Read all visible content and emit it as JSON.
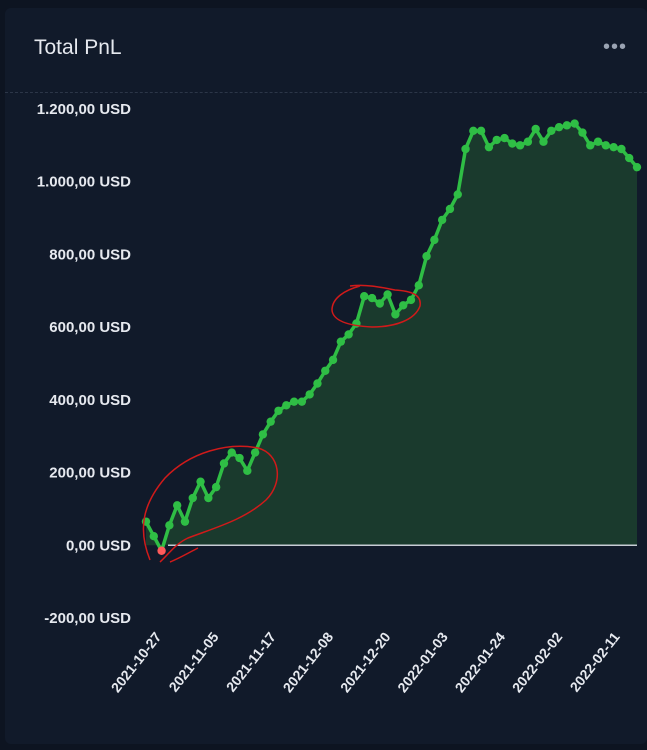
{
  "card": {
    "title": "Total PnL",
    "menu_icon": "more-horizontal-icon"
  },
  "colors": {
    "background": "#111a2a",
    "line": "#2fbe45",
    "area": "#1a3a2d",
    "negative_point": "#ff5b5b",
    "zero_line": "#c7ccd4",
    "annotation": "#d11a1a"
  },
  "chart_data": {
    "type": "area",
    "title": "Total PnL",
    "xlabel": "",
    "ylabel": "",
    "ylim": [
      -200,
      1200
    ],
    "y_ticks": [
      -200,
      0,
      200,
      400,
      600,
      800,
      1000,
      1200
    ],
    "y_tick_labels": [
      "-200,00 USD",
      "0,00 USD",
      "200,00 USD",
      "400,00 USD",
      "600,00 USD",
      "800,00 USD",
      "1.000,00 USD",
      "1.200,00 USD"
    ],
    "x_tick_labels": [
      "2021-10-27",
      "2021-11-05",
      "2021-11-17",
      "2021-12-08",
      "2021-12-20",
      "2022-01-03",
      "2022-01-24",
      "2022-02-02",
      "2022-02-11"
    ],
    "grid": false,
    "legend": "none",
    "series": [
      {
        "values": [
          65,
          25,
          -15,
          55,
          110,
          65,
          130,
          175,
          130,
          160,
          225,
          255,
          240,
          205,
          255,
          305,
          340,
          370,
          385,
          395,
          395,
          415,
          445,
          480,
          510,
          560,
          580,
          610,
          685,
          680,
          665,
          690,
          635,
          660,
          675,
          715,
          795,
          840,
          895,
          925,
          965,
          1090,
          1140,
          1140,
          1095,
          1115,
          1120,
          1105,
          1100,
          1110,
          1145,
          1110,
          1140,
          1150,
          1155,
          1160,
          1135,
          1100,
          1110,
          1100,
          1095,
          1090,
          1065,
          1040
        ]
      }
    ]
  }
}
